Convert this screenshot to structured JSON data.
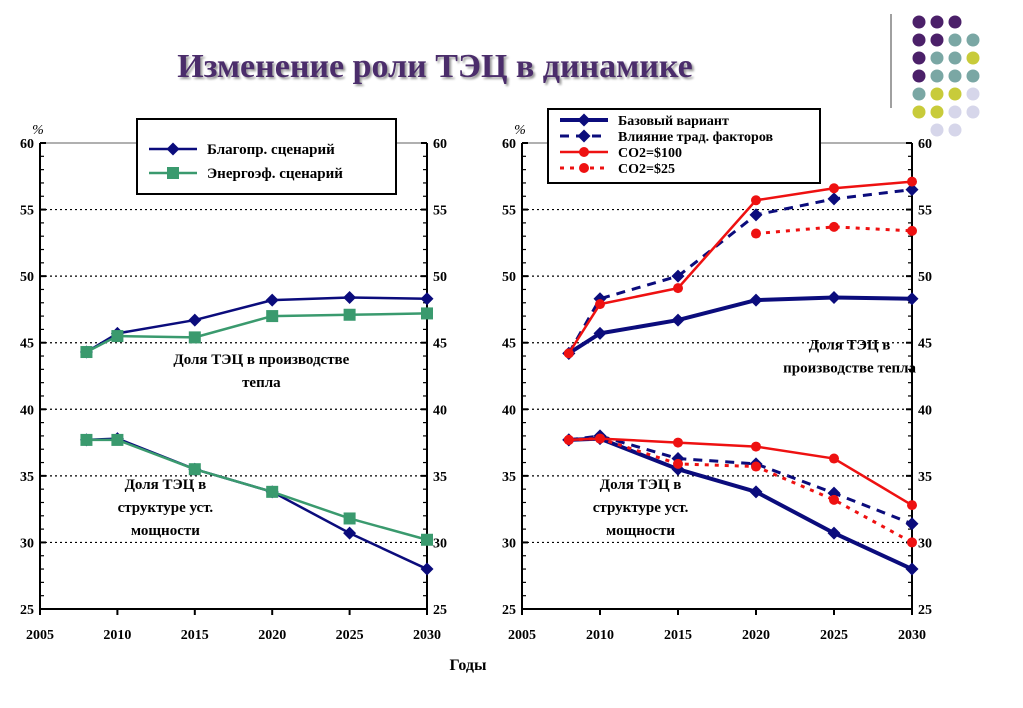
{
  "title": "Изменение роли ТЭЦ в динамике",
  "footer": {
    "xlabel": "Годы"
  },
  "colors": {
    "title": "#4b2d6b",
    "navy": "#0b0c7c",
    "green": "#3a9a6e",
    "red": "#ee1111",
    "dot_purple": "#4b2069",
    "dot_teal": "#7aa7a4",
    "dot_yellow": "#c8cb3a",
    "dot_lavender": "#d6d6ea"
  },
  "decoration_dot_colors": [
    [
      "purple",
      "purple",
      "purple",
      "none"
    ],
    [
      "purple",
      "purple",
      "teal",
      "teal"
    ],
    [
      "purple",
      "teal",
      "teal",
      "yellow"
    ],
    [
      "purple",
      "teal",
      "teal",
      "teal"
    ],
    [
      "teal",
      "yellow",
      "yellow",
      "lavender"
    ],
    [
      "yellow",
      "yellow",
      "lavender",
      "lavender"
    ],
    [
      "none",
      "lavender",
      "lavender",
      "none"
    ]
  ],
  "chart_data": [
    {
      "type": "line",
      "unit_label": "%",
      "xlim": [
        2005,
        2030
      ],
      "ylim": [
        25,
        60
      ],
      "x_ticks": [
        2005,
        2010,
        2015,
        2020,
        2025,
        2030
      ],
      "y_ticks": [
        25,
        30,
        35,
        40,
        45,
        50,
        55,
        60
      ],
      "grid": "horizontal dotted",
      "legend_position": "top",
      "series": [
        {
          "name": "Благопр. сценарий",
          "color": "#0b0c7c",
          "marker": "diamond",
          "style": "solid",
          "width": 2.5,
          "in_legend": true,
          "x": [
            2008,
            2010,
            2015,
            2020,
            2025,
            2030
          ],
          "y": [
            44.3,
            45.7,
            46.7,
            48.2,
            48.4,
            48.3
          ]
        },
        {
          "name": "Энергоэф. сценарий",
          "color": "#3a9a6e",
          "marker": "square",
          "style": "solid",
          "width": 2.5,
          "in_legend": true,
          "x": [
            2008,
            2010,
            2015,
            2020,
            2025,
            2030
          ],
          "y": [
            44.3,
            45.5,
            45.4,
            47.0,
            47.1,
            47.2
          ]
        },
        {
          "name": "Благопр. сценарий",
          "color": "#0b0c7c",
          "marker": "diamond",
          "style": "solid",
          "width": 2.5,
          "in_legend": false,
          "x": [
            2008,
            2010,
            2015,
            2020,
            2025,
            2030
          ],
          "y": [
            37.7,
            37.8,
            35.5,
            33.8,
            30.7,
            28.0
          ]
        },
        {
          "name": "Энергоэф. сценарий",
          "color": "#3a9a6e",
          "marker": "square",
          "style": "solid",
          "width": 2.5,
          "in_legend": false,
          "x": [
            2008,
            2010,
            2015,
            2020,
            2025,
            2030
          ],
          "y": [
            37.7,
            37.7,
            35.5,
            33.8,
            31.8,
            30.2
          ]
        }
      ],
      "annotations": [
        {
          "lines": [
            "Доля ТЭЦ в производстве",
            "тепла"
          ],
          "x": 2019.3,
          "y": 43.4
        },
        {
          "lines": [
            "Доля ТЭЦ в",
            "структуре уст.",
            "мощности"
          ],
          "x": 2013.1,
          "y": 34.0
        }
      ]
    },
    {
      "type": "line",
      "unit_label": "%",
      "xlim": [
        2005,
        2030
      ],
      "ylim": [
        25,
        60
      ],
      "x_ticks": [
        2005,
        2010,
        2015,
        2020,
        2025,
        2030
      ],
      "y_ticks": [
        25,
        30,
        35,
        40,
        45,
        50,
        55,
        60
      ],
      "grid": "horizontal dotted",
      "legend_position": "top",
      "series": [
        {
          "name": "Базовый вариант",
          "color": "#0b0c7c",
          "marker": "diamond",
          "style": "solid",
          "width": 4,
          "in_legend": true,
          "x": [
            2008,
            2010,
            2015,
            2020,
            2025,
            2030
          ],
          "y": [
            44.2,
            45.7,
            46.7,
            48.2,
            48.4,
            48.3
          ]
        },
        {
          "name": "Влияние трад. факторов",
          "color": "#0b0c7c",
          "marker": "diamond",
          "style": "dashed",
          "width": 3,
          "in_legend": true,
          "x": [
            2008,
            2010,
            2015,
            2020,
            2025,
            2030
          ],
          "y": [
            44.2,
            48.3,
            50.0,
            54.6,
            55.8,
            56.5
          ]
        },
        {
          "name": "CO2=$100",
          "color": "#ee1111",
          "marker": "circle",
          "style": "solid",
          "width": 2.5,
          "in_legend": true,
          "x": [
            2008,
            2010,
            2015,
            2020,
            2025,
            2030
          ],
          "y": [
            44.2,
            47.9,
            49.1,
            55.7,
            56.6,
            57.1
          ]
        },
        {
          "name": "CO2=$25",
          "color": "#ee1111",
          "marker": "circle",
          "style": "dotted",
          "width": 3,
          "in_legend": true,
          "x": [
            2020,
            2025,
            2030
          ],
          "y": [
            53.2,
            53.7,
            53.4
          ]
        },
        {
          "name": "Базовый вариант",
          "color": "#0b0c7c",
          "marker": "diamond",
          "style": "solid",
          "width": 4,
          "in_legend": false,
          "x": [
            2008,
            2010,
            2015,
            2020,
            2025,
            2030
          ],
          "y": [
            37.7,
            37.8,
            35.5,
            33.8,
            30.7,
            28.0
          ]
        },
        {
          "name": "Влияние трад. факторов",
          "color": "#0b0c7c",
          "marker": "diamond",
          "style": "dashed",
          "width": 3,
          "in_legend": false,
          "x": [
            2008,
            2010,
            2015,
            2020,
            2025,
            2030
          ],
          "y": [
            37.7,
            38.0,
            36.3,
            35.9,
            33.7,
            31.4
          ]
        },
        {
          "name": "CO2=$100",
          "color": "#ee1111",
          "marker": "circle",
          "style": "solid",
          "width": 2.5,
          "in_legend": false,
          "x": [
            2008,
            2010,
            2015,
            2020,
            2025,
            2030
          ],
          "y": [
            37.7,
            37.8,
            37.5,
            37.2,
            36.3,
            32.8
          ]
        },
        {
          "name": "CO2=$25",
          "color": "#ee1111",
          "marker": "circle",
          "style": "dotted",
          "width": 3,
          "in_legend": false,
          "x": [
            2008,
            2010,
            2015,
            2020,
            2025,
            2030
          ],
          "y": [
            37.7,
            37.8,
            35.9,
            35.7,
            33.2,
            30.0
          ]
        }
      ],
      "annotations": [
        {
          "lines": [
            "Доля ТЭЦ в",
            "производстве тепла"
          ],
          "x": 2026.0,
          "y": 44.5
        },
        {
          "lines": [
            "Доля ТЭЦ в",
            "структуре уст.",
            "мощности"
          ],
          "x": 2012.6,
          "y": 34.0
        }
      ]
    }
  ]
}
